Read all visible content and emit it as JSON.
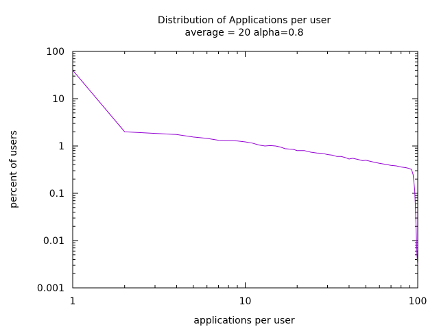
{
  "chart_data": {
    "type": "line",
    "title": "Distribution of Applications per user",
    "subtitle": "average = 20   alpha=0.8",
    "xlabel": "applications per user",
    "ylabel": "percent of users",
    "x_scale": "log",
    "y_scale": "log",
    "xlim": [
      1,
      100
    ],
    "ylim": [
      0.001,
      100
    ],
    "x_ticks": [
      {
        "value": 1,
        "label": "1"
      },
      {
        "value": 10,
        "label": "10"
      },
      {
        "value": 100,
        "label": "100"
      }
    ],
    "y_ticks": [
      {
        "value": 0.001,
        "label": "0.001"
      },
      {
        "value": 0.01,
        "label": "0.01"
      },
      {
        "value": 0.1,
        "label": "0.1"
      },
      {
        "value": 1,
        "label": "1"
      },
      {
        "value": 10,
        "label": "10"
      },
      {
        "value": 100,
        "label": "100"
      }
    ],
    "grid": false,
    "legend": "none",
    "line_color": "#9400d3",
    "series": [
      {
        "x": [
          1,
          2,
          3,
          4,
          5,
          6,
          7,
          8,
          9,
          10,
          11,
          12,
          13,
          14,
          15,
          16,
          17,
          18,
          19,
          20,
          22,
          24,
          26,
          28,
          30,
          32,
          34,
          36,
          38,
          40,
          42,
          45,
          48,
          50,
          55,
          60,
          65,
          70,
          75,
          80,
          85,
          88,
          90,
          92,
          94,
          96,
          97,
          98,
          99,
          100
        ],
        "values": [
          40,
          2.0,
          1.85,
          1.75,
          1.55,
          1.45,
          1.32,
          1.3,
          1.28,
          1.22,
          1.15,
          1.05,
          1.0,
          1.02,
          1.0,
          0.95,
          0.88,
          0.86,
          0.85,
          0.8,
          0.8,
          0.74,
          0.71,
          0.7,
          0.66,
          0.64,
          0.6,
          0.6,
          0.57,
          0.53,
          0.55,
          0.52,
          0.49,
          0.5,
          0.46,
          0.43,
          0.41,
          0.39,
          0.38,
          0.36,
          0.35,
          0.34,
          0.33,
          0.32,
          0.25,
          0.12,
          0.05,
          0.015,
          0.005,
          0.003
        ]
      }
    ]
  }
}
